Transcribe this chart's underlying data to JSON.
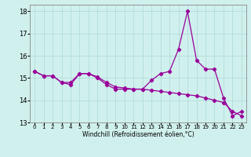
{
  "x": [
    0,
    1,
    2,
    3,
    4,
    5,
    6,
    7,
    8,
    9,
    10,
    11,
    12,
    13,
    14,
    15,
    16,
    17,
    18,
    19,
    20,
    21,
    22,
    23
  ],
  "line1": [
    15.3,
    15.1,
    15.1,
    14.8,
    14.7,
    15.2,
    15.2,
    15.0,
    14.7,
    14.5,
    14.5,
    14.5,
    14.5,
    14.9,
    15.2,
    15.3,
    16.3,
    18.0,
    15.8,
    15.4,
    15.4,
    14.1,
    13.3,
    13.5
  ],
  "line2": [
    15.3,
    15.1,
    15.1,
    14.8,
    14.8,
    15.2,
    15.2,
    15.05,
    14.8,
    14.6,
    14.55,
    14.5,
    14.5,
    14.45,
    14.4,
    14.35,
    14.3,
    14.25,
    14.2,
    14.1,
    14.0,
    13.9,
    13.5,
    13.3
  ],
  "line_color": "#990099",
  "bg_color": "#d0f0ee",
  "grid_color": "#b0ddd8",
  "ylim": [
    13.0,
    18.3
  ],
  "xlim": [
    -0.5,
    23.5
  ],
  "yticks": [
    13,
    14,
    15,
    16,
    17,
    18
  ],
  "xtick_labels": [
    "0",
    "1",
    "2",
    "3",
    "4",
    "5",
    "6",
    "7",
    "8",
    "9",
    "10",
    "11",
    "12",
    "13",
    "14",
    "15",
    "16",
    "17",
    "18",
    "19",
    "20",
    "21",
    "22",
    "23"
  ],
  "xlabel": "Windchill (Refroidissement éolien,°C)",
  "marker": "D",
  "markersize": 2.2,
  "linewidth": 0.9
}
